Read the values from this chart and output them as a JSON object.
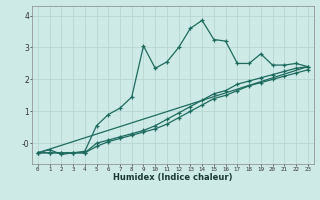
{
  "xlabel": "Humidex (Indice chaleur)",
  "bg_color": "#ceeae6",
  "grid_color": "#b8d8d4",
  "line_color": "#1e6b5e",
  "xlim": [
    -0.5,
    23.5
  ],
  "ylim": [
    -0.65,
    4.3
  ],
  "yticks": [
    0,
    1,
    2,
    3,
    4
  ],
  "ytick_labels": [
    "-0",
    "1",
    "2",
    "3",
    "4"
  ],
  "xticks": [
    0,
    1,
    2,
    3,
    4,
    5,
    6,
    7,
    8,
    9,
    10,
    11,
    12,
    13,
    14,
    15,
    16,
    17,
    18,
    19,
    20,
    21,
    22,
    23
  ],
  "line1_x": [
    0,
    1,
    2,
    3,
    4,
    5,
    6,
    7,
    8,
    9,
    10,
    11,
    12,
    13,
    14,
    15,
    16,
    17,
    18,
    19,
    20,
    21,
    22,
    23
  ],
  "line1_y": [
    -0.3,
    -0.2,
    -0.35,
    -0.3,
    -0.25,
    0.55,
    0.9,
    1.1,
    1.45,
    3.05,
    2.35,
    2.55,
    3.0,
    3.6,
    3.85,
    3.25,
    3.2,
    2.5,
    2.5,
    2.8,
    2.45,
    2.45,
    2.5,
    2.4
  ],
  "line2_x": [
    0,
    1,
    2,
    3,
    4,
    5,
    6,
    7,
    8,
    9,
    10,
    11,
    12,
    13,
    14,
    15,
    16,
    17,
    18,
    19,
    20,
    21,
    22,
    23
  ],
  "line2_y": [
    -0.3,
    -0.3,
    -0.3,
    -0.3,
    -0.3,
    0.0,
    0.1,
    0.2,
    0.3,
    0.4,
    0.55,
    0.75,
    0.95,
    1.15,
    1.35,
    1.55,
    1.65,
    1.85,
    1.95,
    2.05,
    2.15,
    2.25,
    2.35,
    2.4
  ],
  "line3_x": [
    0,
    1,
    2,
    3,
    4,
    5,
    6,
    7,
    8,
    9,
    10,
    11,
    12,
    13,
    14,
    15,
    16,
    17,
    18,
    19,
    20,
    21,
    22,
    23
  ],
  "line3_y": [
    -0.3,
    -0.3,
    -0.3,
    -0.3,
    -0.3,
    -0.1,
    0.05,
    0.15,
    0.25,
    0.35,
    0.45,
    0.6,
    0.8,
    1.0,
    1.2,
    1.4,
    1.5,
    1.65,
    1.8,
    1.9,
    2.0,
    2.1,
    2.2,
    2.3
  ],
  "line4_x": [
    0,
    23
  ],
  "line4_y": [
    -0.3,
    2.4
  ]
}
